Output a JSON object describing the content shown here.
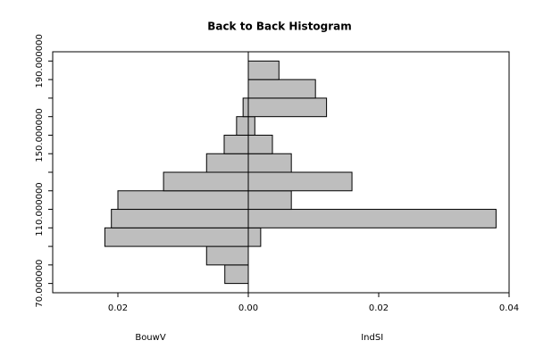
{
  "chart_data": {
    "type": "back-to-back-histogram",
    "title": "Back to Back Histogram",
    "bins": [
      70,
      80,
      90,
      100,
      110,
      120,
      130,
      140,
      150,
      160,
      170,
      180,
      190
    ],
    "series": [
      {
        "name": "BouwV",
        "side": "left",
        "color": "#bebebe",
        "values": [
          0.0036,
          0.0064,
          0.022,
          0.021,
          0.02,
          0.013,
          0.0064,
          0.0037,
          0.0018,
          0.0008,
          0,
          0
        ]
      },
      {
        "name": "IndSI",
        "side": "right",
        "color": "#bebebe",
        "values": [
          0,
          0,
          0.0019,
          0.038,
          0.0066,
          0.0159,
          0.0066,
          0.0037,
          0.001,
          0.012,
          0.0103,
          0.0047
        ]
      }
    ],
    "xlim": [
      -0.03,
      0.04
    ],
    "xticks": [
      {
        "value": -0.02,
        "label": "0.02"
      },
      {
        "value": 0,
        "label": "0.00"
      },
      0.02,
      0.04
    ],
    "ylim": [
      65,
      195
    ],
    "yticks": [
      {
        "value": 70,
        "label": "70.000000"
      },
      {
        "value": 110,
        "label": "110.000000"
      },
      {
        "value": 150,
        "label": "150.000000"
      },
      {
        "value": 190,
        "label": "190.000000"
      }
    ],
    "minor_yticks": [
      80,
      90,
      100,
      120,
      130,
      140,
      160,
      170,
      180
    ]
  }
}
